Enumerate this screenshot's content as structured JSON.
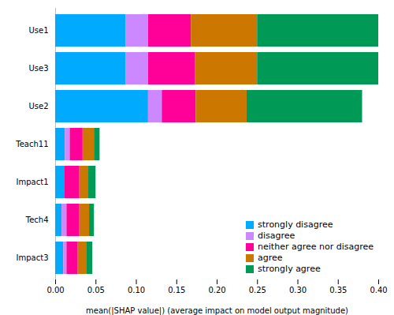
{
  "chart_data": {
    "type": "bar",
    "orientation": "horizontal",
    "stacked": true,
    "categories": [
      "Use1",
      "Use3",
      "Use2",
      "Teach11",
      "Impact1",
      "Tech4",
      "Impact3"
    ],
    "series": [
      {
        "name": "strongly disagree",
        "color": "#00AAFF",
        "values": [
          0.087,
          0.087,
          0.115,
          0.012,
          0.011,
          0.008,
          0.01
        ]
      },
      {
        "name": "disagree",
        "color": "#CC88FF",
        "values": [
          0.028,
          0.028,
          0.017,
          0.006,
          0.0,
          0.006,
          0.004
        ]
      },
      {
        "name": "neither agree nor disagree",
        "color": "#FF0099",
        "values": [
          0.053,
          0.058,
          0.042,
          0.016,
          0.019,
          0.016,
          0.014
        ]
      },
      {
        "name": "agree",
        "color": "#CC7700",
        "values": [
          0.082,
          0.077,
          0.063,
          0.014,
          0.011,
          0.012,
          0.011
        ]
      },
      {
        "name": "strongly agree",
        "color": "#009955",
        "values": [
          0.15,
          0.15,
          0.143,
          0.007,
          0.009,
          0.006,
          0.007
        ]
      }
    ],
    "xlabel": "mean(|SHAP value|) (average impact on model output magnitude)",
    "xlim": [
      0.0,
      0.4
    ],
    "xticks": [
      {
        "value": 0.0,
        "label": "0.00"
      },
      0.05,
      {
        "value": 0.1,
        "label": "0.10"
      },
      0.15,
      {
        "value": 0.2,
        "label": "0.20"
      },
      0.25,
      {
        "value": 0.3,
        "label": "0.30"
      },
      0.35,
      {
        "value": 0.4,
        "label": "0.40"
      }
    ],
    "legend": "lower right"
  }
}
